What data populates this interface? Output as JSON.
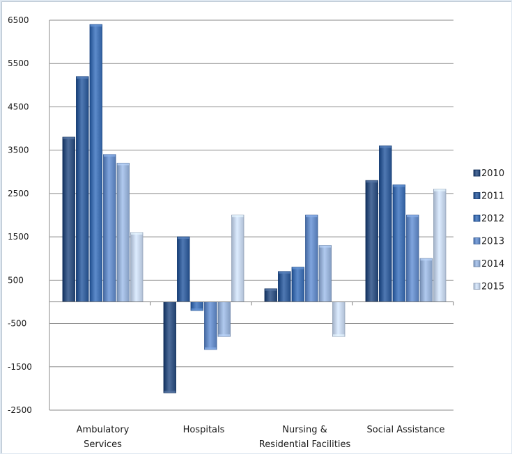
{
  "chart_data": {
    "type": "bar",
    "categories": [
      [
        "Ambulatory",
        "Services"
      ],
      [
        "Hospitals"
      ],
      [
        "Nursing &",
        "Residential Facilities"
      ],
      [
        "Social Assistance"
      ]
    ],
    "series": [
      {
        "name": "2010",
        "color": "#2b4a78",
        "values": [
          3800,
          -2100,
          300,
          2800
        ]
      },
      {
        "name": "2011",
        "color": "#2d5690",
        "values": [
          5200,
          1500,
          700,
          3600
        ]
      },
      {
        "name": "2012",
        "color": "#3a68a8",
        "values": [
          6400,
          -200,
          800,
          2700
        ]
      },
      {
        "name": "2013",
        "color": "#5d82bb",
        "values": [
          3400,
          -1100,
          2000,
          2000
        ]
      },
      {
        "name": "2014",
        "color": "#8ea7cc",
        "values": [
          3200,
          -800,
          1300,
          1000
        ]
      },
      {
        "name": "2015",
        "color": "#bac9df",
        "values": [
          1600,
          2000,
          -800,
          2600
        ]
      }
    ],
    "yticks": [
      6500,
      5500,
      4500,
      3500,
      2500,
      1500,
      500,
      -500,
      -1500,
      -2500
    ],
    "ylim": [
      -2500,
      6500
    ],
    "title": "",
    "xlabel": "",
    "ylabel": "",
    "grid": true,
    "legend_position": "right"
  }
}
